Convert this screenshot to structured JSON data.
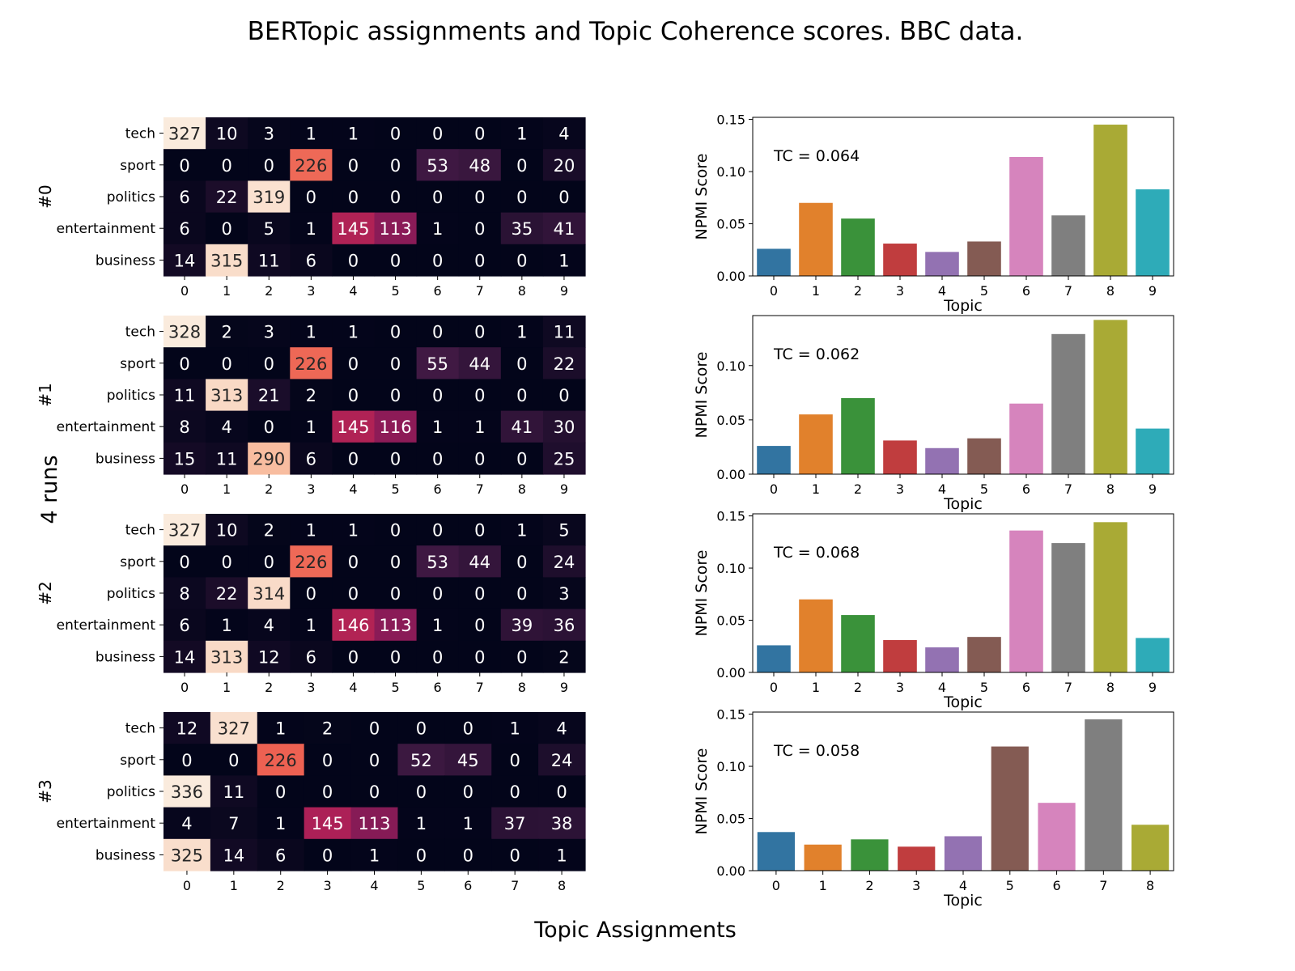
{
  "figure": {
    "title": "BERTopic assignments and Topic Coherence scores. BBC data.",
    "xlabel": "Topic Assignments",
    "ylabel": "4 runs"
  },
  "chart_data": [
    {
      "type": "heatmap",
      "run": "#0",
      "rows": [
        "tech",
        "sport",
        "politics",
        "entertainment",
        "business"
      ],
      "columns": [
        "0",
        "1",
        "2",
        "3",
        "4",
        "5",
        "6",
        "7",
        "8",
        "9"
      ],
      "values": [
        [
          327,
          10,
          3,
          1,
          1,
          0,
          0,
          0,
          1,
          4
        ],
        [
          0,
          0,
          0,
          226,
          0,
          0,
          53,
          48,
          0,
          20
        ],
        [
          6,
          22,
          319,
          0,
          0,
          0,
          0,
          0,
          0,
          0
        ],
        [
          6,
          0,
          5,
          1,
          145,
          113,
          1,
          0,
          35,
          41
        ],
        [
          14,
          315,
          11,
          6,
          0,
          0,
          0,
          0,
          0,
          1
        ]
      ]
    },
    {
      "type": "bar",
      "run": "#0",
      "categories": [
        "0",
        "1",
        "2",
        "3",
        "4",
        "5",
        "6",
        "7",
        "8",
        "9"
      ],
      "values": [
        0.026,
        0.07,
        0.055,
        0.031,
        0.023,
        0.033,
        0.114,
        0.058,
        0.145,
        0.083
      ],
      "xlabel": "Topic",
      "ylabel": "NPMI Score",
      "ylim": [
        0,
        0.152
      ],
      "yticks": [
        "0.00",
        "0.05",
        "0.10",
        "0.15"
      ],
      "annotation": "TC = 0.064"
    },
    {
      "type": "heatmap",
      "run": "#1",
      "rows": [
        "tech",
        "sport",
        "politics",
        "entertainment",
        "business"
      ],
      "columns": [
        "0",
        "1",
        "2",
        "3",
        "4",
        "5",
        "6",
        "7",
        "8",
        "9"
      ],
      "values": [
        [
          328,
          2,
          3,
          1,
          1,
          0,
          0,
          0,
          1,
          11
        ],
        [
          0,
          0,
          0,
          226,
          0,
          0,
          55,
          44,
          0,
          22
        ],
        [
          11,
          313,
          21,
          2,
          0,
          0,
          0,
          0,
          0,
          0
        ],
        [
          8,
          4,
          0,
          1,
          145,
          116,
          1,
          1,
          41,
          30
        ],
        [
          15,
          11,
          290,
          6,
          0,
          0,
          0,
          0,
          0,
          25
        ]
      ]
    },
    {
      "type": "bar",
      "run": "#1",
      "categories": [
        "0",
        "1",
        "2",
        "3",
        "4",
        "5",
        "6",
        "7",
        "8",
        "9"
      ],
      "values": [
        0.026,
        0.055,
        0.07,
        0.031,
        0.024,
        0.033,
        0.065,
        0.129,
        0.142,
        0.042
      ],
      "xlabel": "Topic",
      "ylabel": "NPMI Score",
      "ylim": [
        0,
        0.146
      ],
      "yticks": [
        "0.00",
        "0.05",
        "0.10"
      ],
      "annotation": "TC = 0.062"
    },
    {
      "type": "heatmap",
      "run": "#2",
      "rows": [
        "tech",
        "sport",
        "politics",
        "entertainment",
        "business"
      ],
      "columns": [
        "0",
        "1",
        "2",
        "3",
        "4",
        "5",
        "6",
        "7",
        "8",
        "9"
      ],
      "values": [
        [
          327,
          10,
          2,
          1,
          1,
          0,
          0,
          0,
          1,
          5
        ],
        [
          0,
          0,
          0,
          226,
          0,
          0,
          53,
          44,
          0,
          24
        ],
        [
          8,
          22,
          314,
          0,
          0,
          0,
          0,
          0,
          0,
          3
        ],
        [
          6,
          1,
          4,
          1,
          146,
          113,
          1,
          0,
          39,
          36
        ],
        [
          14,
          313,
          12,
          6,
          0,
          0,
          0,
          0,
          0,
          2
        ]
      ]
    },
    {
      "type": "bar",
      "run": "#2",
      "categories": [
        "0",
        "1",
        "2",
        "3",
        "4",
        "5",
        "6",
        "7",
        "8",
        "9"
      ],
      "values": [
        0.026,
        0.07,
        0.055,
        0.031,
        0.024,
        0.034,
        0.136,
        0.124,
        0.144,
        0.033
      ],
      "xlabel": "Topic",
      "ylabel": "NPMI Score",
      "ylim": [
        0,
        0.152
      ],
      "yticks": [
        "0.00",
        "0.05",
        "0.10",
        "0.15"
      ],
      "annotation": "TC = 0.068"
    },
    {
      "type": "heatmap",
      "run": "#3",
      "rows": [
        "tech",
        "sport",
        "politics",
        "entertainment",
        "business"
      ],
      "columns": [
        "0",
        "1",
        "2",
        "3",
        "4",
        "5",
        "6",
        "7",
        "8"
      ],
      "values": [
        [
          12,
          327,
          1,
          2,
          0,
          0,
          0,
          1,
          4
        ],
        [
          0,
          0,
          226,
          0,
          0,
          52,
          45,
          0,
          24
        ],
        [
          336,
          11,
          0,
          0,
          0,
          0,
          0,
          0,
          0
        ],
        [
          4,
          7,
          1,
          145,
          113,
          1,
          1,
          37,
          38
        ],
        [
          325,
          14,
          6,
          0,
          1,
          0,
          0,
          0,
          1
        ]
      ]
    },
    {
      "type": "bar",
      "run": "#3",
      "categories": [
        "0",
        "1",
        "2",
        "3",
        "4",
        "5",
        "6",
        "7",
        "8"
      ],
      "values": [
        0.037,
        0.025,
        0.03,
        0.023,
        0.033,
        0.119,
        0.065,
        0.145,
        0.044
      ],
      "xlabel": "Topic",
      "ylabel": "NPMI Score",
      "ylim": [
        0,
        0.152
      ],
      "yticks": [
        "0.00",
        "0.05",
        "0.10",
        "0.15"
      ],
      "annotation": "TC = 0.058"
    }
  ],
  "colors": {
    "bars": [
      "#3274a1",
      "#e1812c",
      "#3a923a",
      "#c03d3e",
      "#9372b2",
      "#845b53",
      "#d684bd",
      "#7f7f7f",
      "#a9aa35",
      "#2eabb8"
    ],
    "heatmap_stops": [
      "#03051a",
      "#4c1d4b",
      "#a11a5b",
      "#e83f3f",
      "#f69c73",
      "#faebdd"
    ],
    "text_on_dark": "#ffffff",
    "text_on_light": "#262626"
  }
}
